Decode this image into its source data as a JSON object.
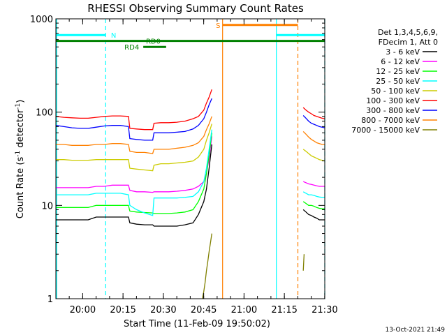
{
  "chart_data": {
    "type": "line",
    "title": "RHESSI Observing Summary Count Rates",
    "xlabel": "Start Time (11-Feb-09 19:50:02)",
    "ylabel_main": "Count Rate (s",
    "ylabel_sup": "-1",
    "ylabel_tail": " detector",
    "ylabel_close": ")",
    "x_unit": "minutes since 19:50:02",
    "xlim": [
      0,
      100
    ],
    "ylim": [
      1,
      1000
    ],
    "y_scale": "log",
    "x_ticks": [
      {
        "label": "20:00",
        "value": 9.97
      },
      {
        "label": "20:15",
        "value": 24.97
      },
      {
        "label": "20:30",
        "value": 39.97
      },
      {
        "label": "20:45",
        "value": 54.97
      },
      {
        "label": "21:00",
        "value": 69.97
      },
      {
        "label": "21:15",
        "value": 84.97
      },
      {
        "label": "21:30",
        "value": 99.97
      }
    ],
    "y_ticks": [
      {
        "label": "1",
        "value": 1
      },
      {
        "label": "10",
        "value": 10
      },
      {
        "label": "100",
        "value": 100
      },
      {
        "label": "1000",
        "value": 1000
      }
    ],
    "legend": {
      "placement": "top-right",
      "header": [
        "Det 1,3,4,5,6,9,",
        "FDecim 1, Att 0"
      ]
    },
    "series": [
      {
        "name": "3 - 6 keV",
        "color": "#000000",
        "x": [
          0,
          3,
          6,
          9,
          12,
          15,
          18,
          21,
          24,
          27,
          27.5,
          30,
          33,
          36,
          36.5,
          39,
          42,
          45,
          48,
          51,
          53,
          55,
          56,
          57,
          58
        ],
        "y": [
          7,
          7,
          7,
          7,
          7,
          7.5,
          7.5,
          7.5,
          7.5,
          7.5,
          6.5,
          6.3,
          6.2,
          6.2,
          6,
          6,
          6,
          6,
          6.2,
          6.5,
          8,
          11,
          15,
          25,
          45
        ],
        "x2": [
          92,
          93,
          94,
          95,
          96,
          97,
          98,
          99,
          100
        ],
        "y2": [
          9,
          8.5,
          8,
          7.8,
          7.5,
          7.3,
          7,
          7,
          7
        ]
      },
      {
        "name": "6 - 12 keV",
        "color": "#ff00ff",
        "x": [
          0,
          3,
          6,
          9,
          12,
          15,
          18,
          21,
          24,
          27,
          27.5,
          30,
          33,
          36,
          36.5,
          39,
          42,
          45,
          48,
          51,
          53,
          55,
          56,
          57,
          58
        ],
        "y": [
          15.5,
          15.5,
          15.5,
          15.5,
          15.5,
          16,
          16,
          16.5,
          16.5,
          16.5,
          14.5,
          14,
          14,
          13.8,
          14,
          14,
          14,
          14.2,
          14.5,
          15,
          16,
          18,
          22,
          32,
          55
        ],
        "x2": [
          92,
          93,
          94,
          95,
          96,
          97,
          98,
          99,
          100
        ],
        "y2": [
          18,
          17.5,
          17,
          16.8,
          16.5,
          16.2,
          16,
          16,
          16
        ]
      },
      {
        "name": "12 - 25 keV",
        "color": "#00ff00",
        "x": [
          0,
          3,
          6,
          9,
          12,
          15,
          18,
          21,
          24,
          27,
          27.5,
          30,
          33,
          36,
          36.5,
          39,
          42,
          45,
          48,
          51,
          53,
          55,
          56,
          57,
          58
        ],
        "y": [
          9.5,
          9.5,
          9.5,
          9.5,
          9.5,
          10,
          10,
          10,
          10,
          10,
          8.7,
          8.5,
          8.4,
          8.3,
          8.2,
          8.2,
          8.2,
          8.3,
          8.5,
          9,
          11,
          15,
          22,
          35,
          60
        ],
        "x2": [
          92,
          93,
          94,
          95,
          96,
          97,
          98,
          99,
          100
        ],
        "y2": [
          11,
          10.5,
          10,
          10,
          9.8,
          9.5,
          9.3,
          9.2,
          9.2
        ]
      },
      {
        "name": "25 - 50 keV",
        "color": "#00ffff",
        "x": [
          0,
          3,
          6,
          9,
          12,
          15,
          18,
          21,
          24,
          27,
          27.5,
          30,
          33,
          36,
          36.5,
          39,
          42,
          45,
          48,
          51,
          53,
          55,
          56,
          57,
          58
        ],
        "y": [
          13,
          13,
          13,
          13,
          13,
          13.5,
          13.5,
          13.5,
          13.5,
          13,
          10,
          9,
          8.3,
          7.8,
          12,
          12,
          12,
          12,
          12.2,
          12.5,
          14,
          18,
          25,
          40,
          65
        ],
        "x2": [
          92,
          93,
          94,
          95,
          96,
          97,
          98,
          99,
          100
        ],
        "y2": [
          14,
          13.5,
          13,
          13,
          12.8,
          12.5,
          12.3,
          12.2,
          12.2
        ]
      },
      {
        "name": "50 - 100 keV",
        "color": "#cccc00",
        "x": [
          0,
          3,
          6,
          9,
          12,
          15,
          18,
          21,
          24,
          27,
          27.5,
          30,
          33,
          36,
          36.5,
          39,
          42,
          45,
          48,
          51,
          53,
          55,
          56,
          57,
          58
        ],
        "y": [
          31,
          31,
          30.5,
          30.5,
          30.5,
          31,
          31,
          31,
          31,
          31,
          25,
          24.5,
          24,
          23.5,
          27,
          28,
          28,
          28.5,
          29,
          30,
          33,
          40,
          50,
          60,
          75
        ],
        "x2": [
          92,
          93,
          94,
          95,
          96,
          97,
          98,
          99,
          100
        ],
        "y2": [
          40,
          38,
          36,
          34,
          33,
          32,
          31,
          30.5,
          30
        ]
      },
      {
        "name": "100 - 300 keV",
        "color": "#ff0000",
        "x": [
          0,
          3,
          6,
          9,
          12,
          15,
          18,
          21,
          24,
          27,
          27.5,
          30,
          33,
          36,
          36.5,
          39,
          42,
          45,
          48,
          51,
          53,
          55,
          56,
          57,
          58
        ],
        "y": [
          90,
          88,
          87,
          86,
          86,
          88,
          90,
          91,
          91,
          90,
          67,
          66,
          65,
          65,
          76,
          77,
          77,
          78,
          80,
          85,
          90,
          105,
          125,
          145,
          175
        ],
        "x2": [
          92,
          93,
          94,
          95,
          96,
          97,
          98,
          99,
          100
        ],
        "y2": [
          112,
          105,
          100,
          96,
          92,
          90,
          88,
          86,
          85
        ]
      },
      {
        "name": "300 - 800 keV",
        "color": "#0000ff",
        "x": [
          0,
          3,
          6,
          9,
          12,
          15,
          18,
          21,
          24,
          27,
          27.5,
          30,
          33,
          36,
          36.5,
          39,
          42,
          45,
          48,
          51,
          53,
          55,
          56,
          57,
          58
        ],
        "y": [
          72,
          70,
          68,
          67,
          67,
          69,
          71,
          72,
          72,
          70,
          52,
          51,
          50,
          50,
          60,
          60,
          60,
          61,
          62,
          66,
          72,
          85,
          100,
          120,
          140
        ],
        "x2": [
          92,
          93,
          94,
          95,
          96,
          97,
          98,
          99,
          100
        ],
        "y2": [
          92,
          86,
          80,
          76,
          74,
          72,
          70,
          69,
          68
        ]
      },
      {
        "name": "800 - 7000 keV",
        "color": "#ff8000",
        "x": [
          0,
          3,
          6,
          9,
          12,
          15,
          18,
          21,
          24,
          27,
          27.5,
          30,
          33,
          36,
          36.5,
          39,
          42,
          45,
          48,
          51,
          53,
          55,
          56,
          57,
          58
        ],
        "y": [
          45,
          45,
          44,
          44,
          44,
          45,
          45,
          46,
          46,
          45,
          38,
          37,
          37,
          36,
          40,
          40,
          40,
          41,
          42,
          44,
          47,
          55,
          65,
          75,
          90
        ],
        "x2": [
          92,
          93,
          94,
          95,
          96,
          97,
          98,
          99,
          100
        ],
        "y2": [
          62,
          58,
          54,
          51,
          49,
          47,
          46,
          45,
          45
        ]
      },
      {
        "name": "7000 - 15000 keV",
        "color": "#808000",
        "x": [
          54.5,
          55,
          55.5,
          56,
          56.5,
          57,
          57.5,
          58
        ],
        "y": [
          1,
          1.2,
          1.5,
          2,
          2.5,
          3.2,
          4,
          5
        ],
        "x2": [
          92,
          92.3
        ],
        "y2": [
          2,
          3
        ]
      }
    ],
    "annotations": [
      {
        "label": "N",
        "color": "#00ffff",
        "x_start": 0,
        "x_end": 18.5,
        "y": 670,
        "text_x": 20.5
      },
      {
        "label": "N",
        "color": "#00ffff",
        "x_start": 82,
        "x_end": 100,
        "y": 670
      },
      {
        "label": "S",
        "color": "#ff8000",
        "x_start": 62,
        "x_end": 90,
        "y": 860,
        "text_x": 59.5
      },
      {
        "label": "RD0",
        "color": "#008000",
        "x_start": 0,
        "x_end": 100,
        "y": 580,
        "text_x": 33.5
      },
      {
        "label": "RD4",
        "color": "#008000",
        "x_start": 32.5,
        "x_end": 41,
        "y": 500,
        "text_x": 25.5
      }
    ],
    "vlines": [
      {
        "x": 0.3,
        "color": "#00ffff",
        "style": "solid"
      },
      {
        "x": 18.5,
        "color": "#00ffff",
        "style": "dashed"
      },
      {
        "x": 62,
        "color": "#ff8000",
        "style": "solid"
      },
      {
        "x": 82,
        "color": "#00ffff",
        "style": "solid"
      },
      {
        "x": 90,
        "color": "#ff8000",
        "style": "dashed"
      },
      {
        "x": 100,
        "color": "#00ffff",
        "style": "dashed"
      }
    ],
    "footer": "13-Oct-2021 21:49"
  }
}
